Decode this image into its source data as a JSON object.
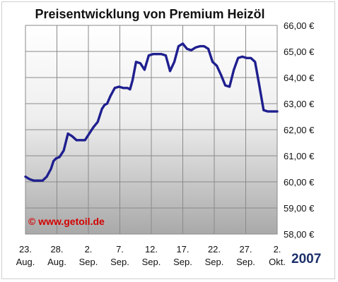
{
  "chart_data": {
    "type": "line",
    "title": "Preisentwicklung von Premium Heizöl",
    "xlabel": "",
    "ylabel": "",
    "ylim": [
      58,
      66
    ],
    "grid": true,
    "y_ticks": [
      "66,00 €",
      "65,00 €",
      "64,00 €",
      "63,00 €",
      "62,00 €",
      "61,00 €",
      "60,00 €",
      "59,00 €",
      "58,00 €"
    ],
    "x_ticks": [
      {
        "top": "23.",
        "bottom": "Aug."
      },
      {
        "top": "28.",
        "bottom": "Aug."
      },
      {
        "top": "2.",
        "bottom": "Sep."
      },
      {
        "top": "7.",
        "bottom": "Sep."
      },
      {
        "top": "12.",
        "bottom": "Sep."
      },
      {
        "top": "17.",
        "bottom": "Sep."
      },
      {
        "top": "22.",
        "bottom": "Sep."
      },
      {
        "top": "27.",
        "bottom": "Sep."
      },
      {
        "top": "2.",
        "bottom": "Okt."
      }
    ],
    "year_label": "2007",
    "watermark": "© www.getoil.de",
    "line_color": "#1f1f8f",
    "series": [
      {
        "x": [
          0,
          0.5,
          1,
          1.5,
          2,
          2.5,
          3,
          3.3,
          3.6,
          4,
          4.5,
          5,
          5.5,
          6,
          6.5,
          7,
          7.5,
          8,
          8.5,
          9,
          9.3,
          9.6,
          10,
          10.5,
          11,
          11.5,
          12,
          12.3,
          12.6,
          13,
          13.5,
          14,
          14.5,
          15,
          15.5,
          16,
          16.5,
          17,
          17.5,
          18,
          18.5,
          19,
          19.5,
          20,
          20.5,
          21,
          21.5,
          22,
          22.5,
          23,
          23.5,
          24,
          24.5,
          25,
          25.5,
          26,
          26.5,
          27,
          27.5,
          28,
          28.5,
          29,
          29.3,
          29.6,
          30,
          30.5,
          31,
          31.5,
          32,
          32.5,
          33,
          33.3,
          33.6,
          34,
          34.5,
          35,
          35.5,
          36,
          36.5,
          37,
          37.5,
          38,
          38.5,
          39,
          39.5,
          40
        ],
        "values": [
          60.2,
          60.1,
          60.05,
          60.05,
          60.05,
          60.2,
          60.5,
          60.8,
          60.9,
          60.95,
          61.2,
          61.85,
          61.75,
          61.6,
          61.6,
          61.6,
          61.85,
          62.1,
          62.3,
          62.8,
          62.95,
          63.0,
          63.3,
          63.6,
          63.65,
          63.6,
          63.6,
          63.55,
          63.9,
          64.6,
          64.55,
          64.3,
          64.85,
          64.9,
          64.9,
          64.9,
          64.85,
          64.25,
          64.6,
          65.2,
          65.3,
          65.1,
          65.05,
          65.15,
          65.2,
          65.2,
          65.1,
          64.6,
          64.45,
          64.1,
          63.7,
          63.65,
          64.3,
          64.75,
          64.8,
          64.75,
          64.75,
          64.6,
          63.7,
          62.75,
          62.7,
          62.7,
          62.7,
          62.7,
          62.7,
          62.7,
          62.7,
          62.7,
          62.7,
          62.7,
          62.7,
          62.7,
          62.7,
          62.7,
          62.7,
          62.7,
          62.7,
          62.7,
          62.7,
          62.7,
          62.7,
          62.7,
          62.7,
          62.7,
          62.7,
          62.7
        ]
      }
    ]
  }
}
